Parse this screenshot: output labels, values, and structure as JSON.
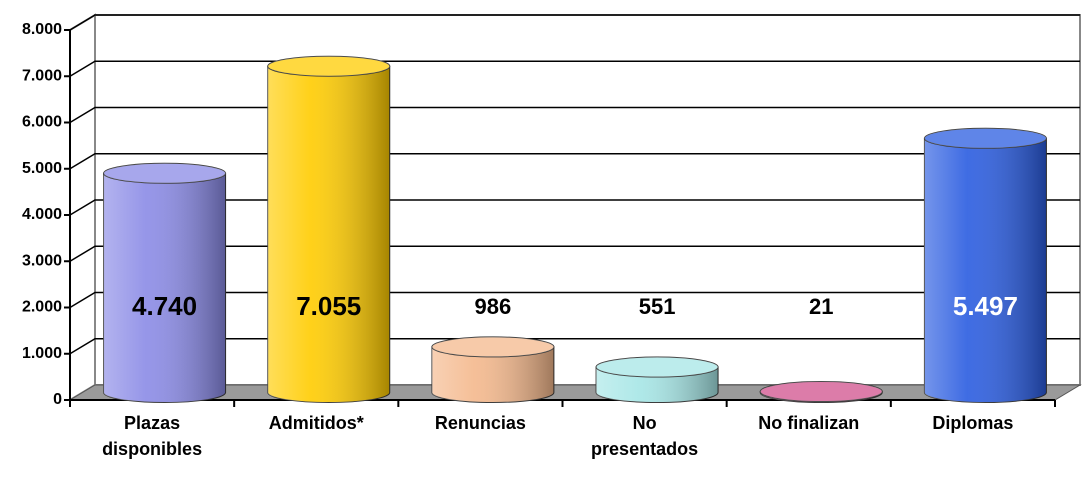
{
  "chart_data": {
    "type": "cylinder_bar",
    "categories": [
      "Plazas disponibles",
      "Admitidos*",
      "Renuncias",
      "No presentados",
      "No finalizan",
      "Diplomas"
    ],
    "values": [
      4740,
      7055,
      986,
      551,
      21,
      5497
    ],
    "value_labels": [
      "4.740",
      "7.055",
      "986",
      "551",
      "21",
      "5.497"
    ],
    "colors": [
      "#8a8ae6",
      "#ffcc00",
      "#f4b88c",
      "#a6e6e6",
      "#d0508c",
      "#2a5ce0"
    ],
    "value_label_colors": [
      "#000000",
      "#000000",
      "#000000",
      "#000000",
      "#000000",
      "#ffffff"
    ],
    "ylim": [
      0,
      8000
    ],
    "yticks": [
      0,
      {
        "value": 1000,
        "label": "1.000"
      },
      {
        "value": 2000,
        "label": "2.000"
      },
      {
        "value": 3000,
        "label": "3.000"
      },
      {
        "value": 4000,
        "label": "4.000"
      },
      {
        "value": 5000,
        "label": "5.000"
      },
      {
        "value": 6000,
        "label": "6.000"
      },
      {
        "value": 7000,
        "label": "7.000"
      },
      {
        "value": 8000,
        "label": "8.000"
      }
    ],
    "grid": true
  }
}
